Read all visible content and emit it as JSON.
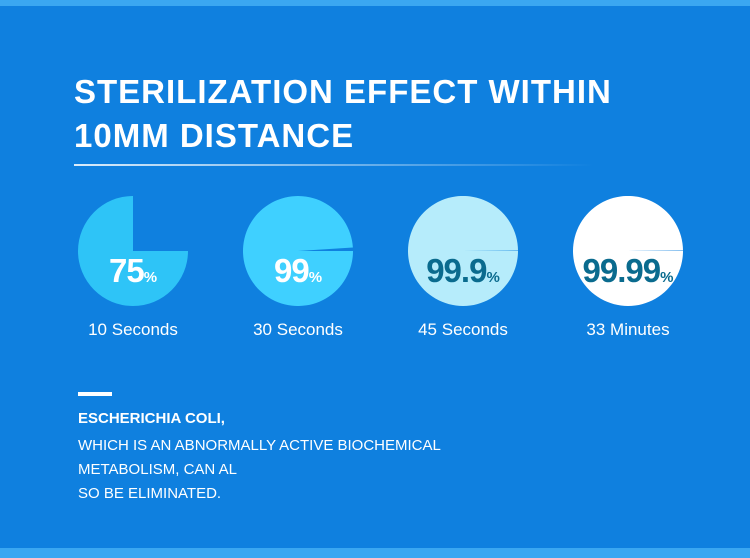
{
  "header": {
    "title_line1": "STERILIZATION EFFECT WITHIN",
    "title_line2": "10MM DISTANCE"
  },
  "stats": [
    {
      "value": "75",
      "unit": "%",
      "fraction": 0.75,
      "label": "10 Seconds",
      "fill_color": "#2ec4f7",
      "text_color": "#ffffff"
    },
    {
      "value": "99",
      "unit": "%",
      "fraction": 0.99,
      "label": "30 Seconds",
      "fill_color": "#3fd0ff",
      "text_color": "#ffffff"
    },
    {
      "value": "99.9",
      "unit": "%",
      "fraction": 0.999,
      "label": "45 Seconds",
      "fill_color": "#b6ecfb",
      "text_color": "#0a6b8e"
    },
    {
      "value": "99.99",
      "unit": "%",
      "fraction": 0.9999,
      "label": "33 Minutes",
      "fill_color": "#ffffff",
      "text_color": "#0a6b8e"
    }
  ],
  "description": {
    "heading": "ESCHERICHIA COLI,",
    "lines": [
      "WHICH IS AN ABNORMALLY ACTIVE BIOCHEMICAL",
      "METABOLISM, CAN AL",
      "SO BE ELIMINATED."
    ]
  },
  "colors": {
    "background": "#0f80df",
    "accent": "#3aa7f1"
  }
}
